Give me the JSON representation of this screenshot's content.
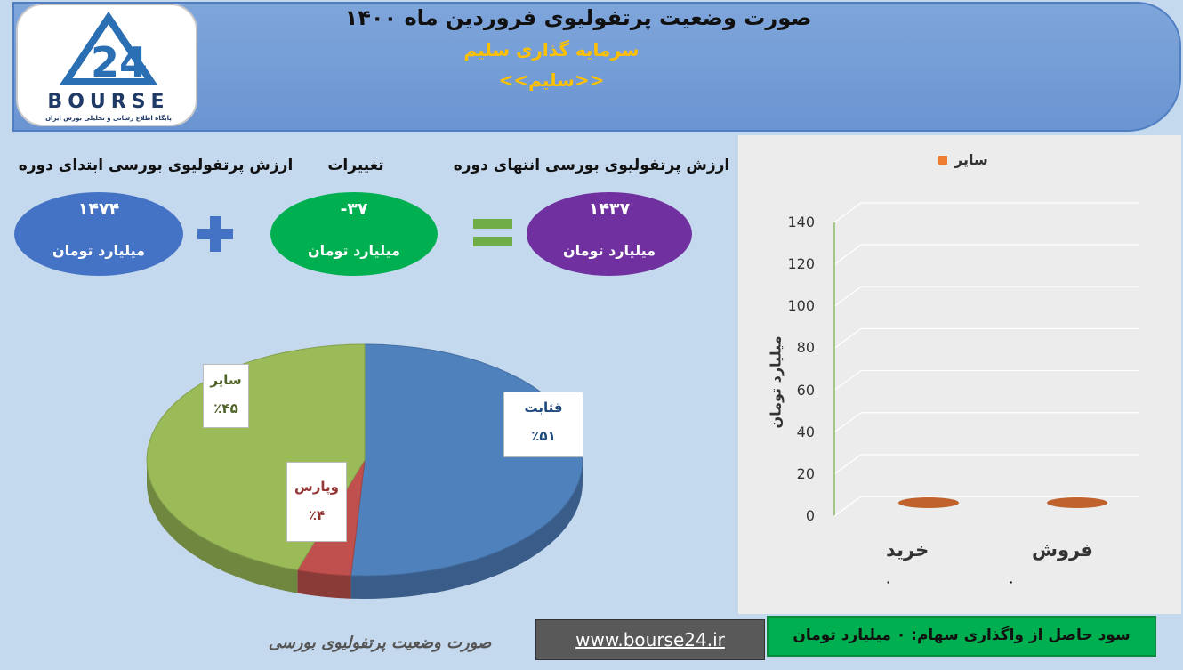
{
  "header": {
    "title": "صورت وضعیت پرتفولیوی فروردین ماه ۱۴۰۰",
    "company": "سرمایه گذاری سلیم",
    "symbol": "<<سلیم>>"
  },
  "logo": {
    "text": "BOURSE",
    "subtitle": "پایگاه اطلاع رسانی و تحلیلی بورس ایران"
  },
  "summary": {
    "start_label": "ارزش پرتفولیوی بورسی ابتدای دوره",
    "start_value": "۱۴۷۴",
    "change_label": "تغییرات",
    "change_value": "-۳۷",
    "end_label": "ارزش پرتفولیوی بورسی انتهای دوره",
    "end_value": "۱۴۳۷",
    "unit": "میلیارد تومان",
    "colors": {
      "start": "#4472c4",
      "change": "#00b050",
      "end": "#7030a0",
      "operator": "#4472c4",
      "equals": "#70ad47"
    }
  },
  "chart_data": [
    {
      "type": "pie",
      "slices": [
        {
          "name": "قثابت",
          "value": 51,
          "label": "٪۵۱",
          "color": "#4f81bd"
        },
        {
          "name": "وپارس",
          "value": 4,
          "label": "٪۴",
          "color": "#c0504d"
        },
        {
          "name": "سایر",
          "value": 45,
          "label": "٪۴۵",
          "color": "#9bbb59"
        }
      ]
    },
    {
      "type": "bar",
      "categories": [
        "خرید",
        "فروش"
      ],
      "series": [
        {
          "name": "سایر",
          "values": [
            0,
            0
          ],
          "color": "#ed7d31"
        }
      ],
      "data_labels": [
        "۰",
        "۰"
      ],
      "ylabel": "میلیارد تومان",
      "ylim": [
        0,
        140
      ],
      "yticks": [
        "0",
        "20",
        "40",
        "60",
        "80",
        "100",
        "120",
        "140"
      ]
    }
  ],
  "footer": {
    "caption": "صورت وضعیت پرتفولیوی بورسی",
    "url": "www.bourse24.ir",
    "profit": "سود حاصل از واگذاری سهام: ۰ میلیارد تومان"
  }
}
